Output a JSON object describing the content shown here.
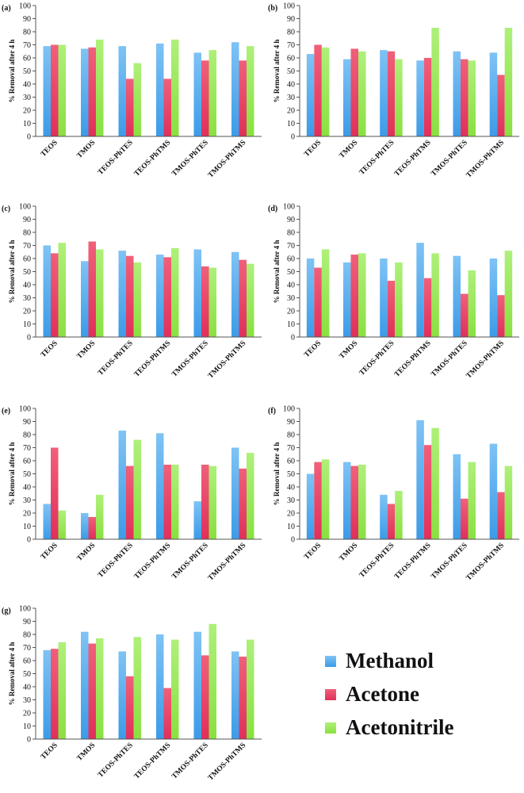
{
  "colors": {
    "methanol": "#7ec3f5",
    "acetone": "#f0607a",
    "acetonitrile": "#aef07a"
  },
  "legend": [
    {
      "label": "Methanol",
      "color": "#7ec3f5"
    },
    {
      "label": "Acetone",
      "color": "#f0607a"
    },
    {
      "label": "Acetonitrile",
      "color": "#aef07a"
    }
  ],
  "chart_data": [
    {
      "type": "bar",
      "title": "",
      "panel_label": "(a)",
      "ylabel": "% Removal after 4 h",
      "xlabel": "",
      "ylim": [
        0,
        100
      ],
      "yticks": [
        "0",
        "10",
        "20",
        "30",
        "40",
        "50",
        "60",
        "70",
        "80",
        "90",
        "100"
      ],
      "categories": [
        "TEOS",
        "TMOS",
        "TEOS-PhTES",
        "TEOS-PhTMS",
        "TMOS-PhTES",
        "TMOS-PhTMS"
      ],
      "series": [
        {
          "name": "Methanol",
          "values": [
            69,
            67,
            69,
            71,
            64,
            72
          ]
        },
        {
          "name": "Acetone",
          "values": [
            70,
            68,
            44,
            44,
            58,
            58
          ]
        },
        {
          "name": "Acetonitrile",
          "values": [
            70,
            74,
            56,
            74,
            66,
            69
          ]
        }
      ]
    },
    {
      "type": "bar",
      "title": "",
      "panel_label": "(b)",
      "ylabel": "% Removal after 4 h",
      "xlabel": "",
      "ylim": [
        0,
        100
      ],
      "yticks": [
        "0",
        "10",
        "20",
        "30",
        "40",
        "50",
        "60",
        "70",
        "80",
        "90",
        "100"
      ],
      "categories": [
        "TEOS",
        "TMOS",
        "TEOS-PhTES",
        "TEOS-PhTMS",
        "TMOS-PhTES",
        "TMOS-PhTMS"
      ],
      "series": [
        {
          "name": "Methanol",
          "values": [
            63,
            59,
            66,
            58,
            65,
            64
          ]
        },
        {
          "name": "Acetone",
          "values": [
            70,
            67,
            65,
            60,
            59,
            47
          ]
        },
        {
          "name": "Acetonitrile",
          "values": [
            68,
            65,
            59,
            83,
            58,
            83
          ]
        }
      ]
    },
    {
      "type": "bar",
      "title": "",
      "panel_label": "(c)",
      "ylabel": "% Removal after 4 h",
      "xlabel": "",
      "ylim": [
        0,
        100
      ],
      "yticks": [
        "0",
        "10",
        "20",
        "30",
        "40",
        "50",
        "60",
        "70",
        "80",
        "90",
        "100"
      ],
      "categories": [
        "TEOS",
        "TMOS",
        "TEOS-PhTES",
        "TEOS-PhTMS",
        "TMOS-PhTES",
        "TMOS-PhTMS"
      ],
      "series": [
        {
          "name": "Methanol",
          "values": [
            70,
            58,
            66,
            63,
            67,
            65
          ]
        },
        {
          "name": "Acetone",
          "values": [
            64,
            73,
            62,
            61,
            54,
            59
          ]
        },
        {
          "name": "Acetonitrile",
          "values": [
            72,
            67,
            57,
            68,
            53,
            56
          ]
        }
      ]
    },
    {
      "type": "bar",
      "title": "",
      "panel_label": "(d)",
      "ylabel": "% Removal after 4 h",
      "xlabel": "",
      "ylim": [
        0,
        100
      ],
      "yticks": [
        "0",
        "10",
        "20",
        "30",
        "40",
        "50",
        "60",
        "70",
        "80",
        "90",
        "100"
      ],
      "categories": [
        "TEOS",
        "TMOS",
        "TEOS-PhTES",
        "TEOS-PhTMS",
        "TMOS-PhTES",
        "TMOS-PhTMS"
      ],
      "series": [
        {
          "name": "Methanol",
          "values": [
            60,
            57,
            60,
            72,
            62,
            60
          ]
        },
        {
          "name": "Acetone",
          "values": [
            53,
            63,
            43,
            45,
            33,
            32
          ]
        },
        {
          "name": "Acetonitrile",
          "values": [
            67,
            64,
            57,
            64,
            51,
            66
          ]
        }
      ]
    },
    {
      "type": "bar",
      "title": "",
      "panel_label": "(e)",
      "ylabel": "% Removal after 4 h",
      "xlabel": "",
      "ylim": [
        0,
        100
      ],
      "yticks": [
        "0",
        "10",
        "20",
        "30",
        "40",
        "50",
        "60",
        "70",
        "80",
        "90",
        "100"
      ],
      "categories": [
        "TEOS",
        "TMOS",
        "TEOS-PhTES",
        "TEOS-PhTMS",
        "TMOS-PhTES",
        "TMOS-PhTMS"
      ],
      "series": [
        {
          "name": "Methanol",
          "values": [
            27,
            20,
            83,
            81,
            29,
            70
          ]
        },
        {
          "name": "Acetone",
          "values": [
            70,
            17,
            56,
            57,
            57,
            54
          ]
        },
        {
          "name": "Acetonitrile",
          "values": [
            22,
            34,
            76,
            57,
            56,
            66
          ]
        }
      ]
    },
    {
      "type": "bar",
      "title": "",
      "panel_label": "(f)",
      "ylabel": "% Removal after 4 h",
      "xlabel": "",
      "ylim": [
        0,
        100
      ],
      "yticks": [
        "0",
        "10",
        "20",
        "30",
        "40",
        "50",
        "60",
        "70",
        "80",
        "90",
        "100"
      ],
      "categories": [
        "TEOS",
        "TMOS",
        "TEOS-PhTES",
        "TEOS-PhTMS",
        "TMOS-PhTES",
        "TMOS-PhTMS"
      ],
      "series": [
        {
          "name": "Methanol",
          "values": [
            50,
            59,
            34,
            91,
            65,
            73
          ]
        },
        {
          "name": "Acetone",
          "values": [
            59,
            56,
            27,
            72,
            31,
            36
          ]
        },
        {
          "name": "Acetonitrile",
          "values": [
            61,
            57,
            37,
            85,
            59,
            56
          ]
        }
      ]
    },
    {
      "type": "bar",
      "title": "",
      "panel_label": "(g)",
      "ylabel": "% Removal after 4 h",
      "xlabel": "",
      "ylim": [
        0,
        100
      ],
      "yticks": [
        "0",
        "10",
        "20",
        "30",
        "40",
        "50",
        "60",
        "70",
        "80",
        "90",
        "100"
      ],
      "categories": [
        "TEOS",
        "TMOS",
        "TEOS-PhTES",
        "TEOS-PhTMS",
        "TMOS-PhTES",
        "TMOS-PhTMS"
      ],
      "series": [
        {
          "name": "Methanol",
          "values": [
            68,
            82,
            67,
            80,
            82,
            67
          ]
        },
        {
          "name": "Acetone",
          "values": [
            69,
            73,
            48,
            39,
            64,
            63
          ]
        },
        {
          "name": "Acetonitrile",
          "values": [
            74,
            77,
            78,
            76,
            88,
            76
          ]
        }
      ]
    }
  ]
}
